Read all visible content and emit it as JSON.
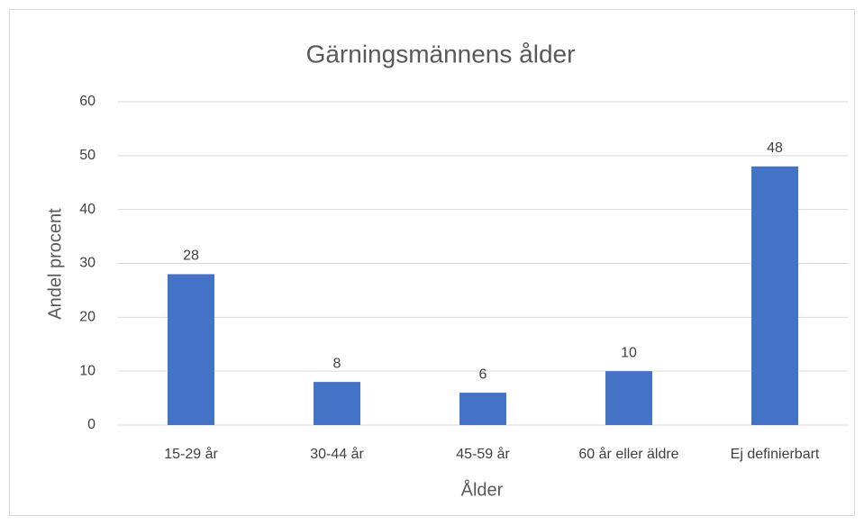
{
  "chart_data": {
    "type": "bar",
    "title": "Gärningsmännens ålder",
    "x_label": "Ålder",
    "y_label": "Andel procent",
    "categories": [
      "15-29 år",
      "30-44 år",
      "45-59 år",
      "60 år eller äldre",
      "Ej definierbart"
    ],
    "values": [
      28,
      8,
      6,
      10,
      48
    ],
    "color": "#4472c4",
    "ylim": [
      0,
      60
    ],
    "yticks": [
      0,
      10,
      20,
      30,
      40,
      50,
      60
    ],
    "grid": true,
    "data_labels": true
  }
}
